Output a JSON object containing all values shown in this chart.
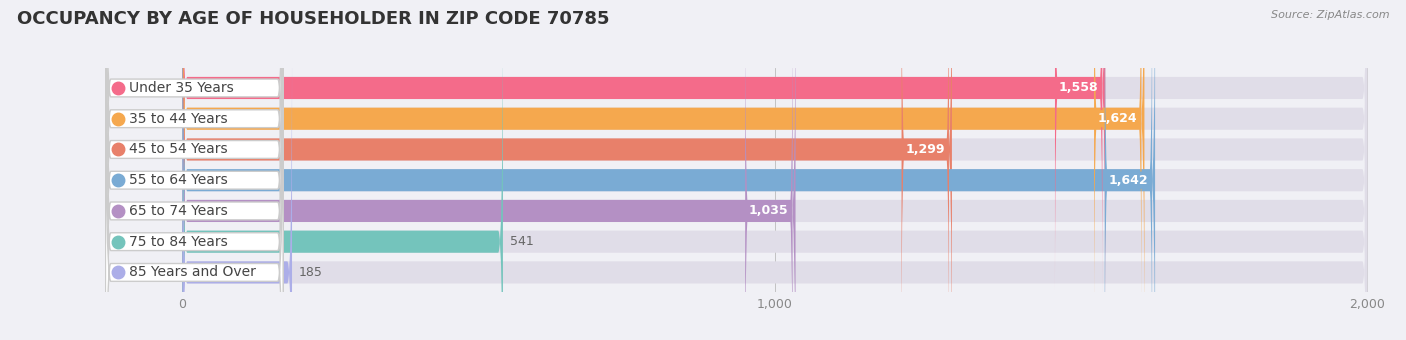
{
  "title": "OCCUPANCY BY AGE OF HOUSEHOLDER IN ZIP CODE 70785",
  "source": "Source: ZipAtlas.com",
  "categories": [
    "Under 35 Years",
    "35 to 44 Years",
    "45 to 54 Years",
    "55 to 64 Years",
    "65 to 74 Years",
    "75 to 84 Years",
    "85 Years and Over"
  ],
  "values": [
    1558,
    1624,
    1299,
    1642,
    1035,
    541,
    185
  ],
  "bar_colors": [
    "#F46B8A",
    "#F5A84E",
    "#E8806A",
    "#7AABD4",
    "#B490C4",
    "#74C4BC",
    "#ACAEE8"
  ],
  "bar_bg_colors": [
    "#EDE8EE",
    "#EDE8EE",
    "#EDE8EE",
    "#EDE8EE",
    "#EDE8EE",
    "#EDE8EE",
    "#EDE8EE"
  ],
  "dot_colors": [
    "#F46B8A",
    "#F5A84E",
    "#E8806A",
    "#7AABD4",
    "#B490C4",
    "#74C4BC",
    "#ACAEE8"
  ],
  "xlim": [
    0,
    2000
  ],
  "xticks": [
    0,
    1000,
    2000
  ],
  "value_in_threshold": 300,
  "title_fontsize": 13,
  "label_fontsize": 10,
  "value_fontsize": 9,
  "background_color": "#f5f5f8",
  "row_bg_color": "#e8e8ee",
  "label_bg_color": "#ffffff"
}
